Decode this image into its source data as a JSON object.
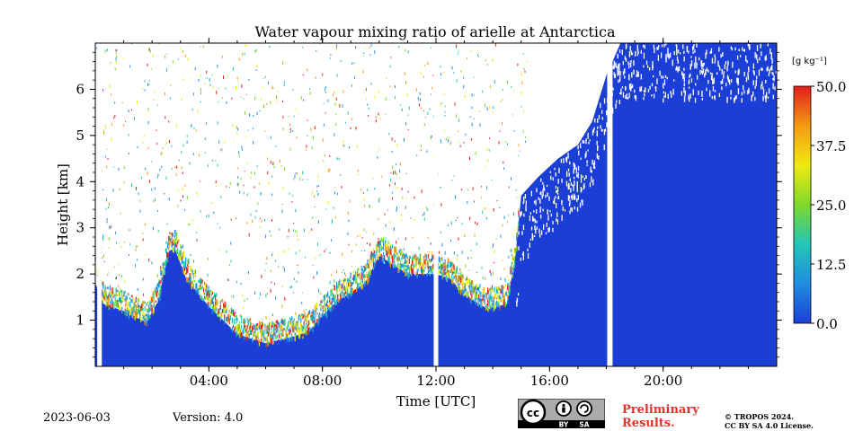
{
  "chart_data": {
    "type": "heatmap",
    "title": "Water vapour mixing ratio of arielle at Antarctica",
    "xlabel": "Time [UTC]",
    "ylabel": "Height [km]",
    "x_range_hours": [
      0,
      24
    ],
    "ylim_km": [
      0,
      7
    ],
    "x_ticks": [
      {
        "value": 4,
        "label": "04:00"
      },
      {
        "value": 8,
        "label": "08:00"
      },
      {
        "value": 12,
        "label": "12:00"
      },
      {
        "value": 16,
        "label": "16:00"
      },
      {
        "value": 20,
        "label": "20:00"
      }
    ],
    "y_ticks": [
      {
        "value": 1,
        "label": "1"
      },
      {
        "value": 2,
        "label": "2"
      },
      {
        "value": 3,
        "label": "3"
      },
      {
        "value": 4,
        "label": "4"
      },
      {
        "value": 5,
        "label": "5"
      },
      {
        "value": 6,
        "label": "6"
      }
    ],
    "colorbar": {
      "unit": "[g kg⁻¹]",
      "range": [
        0,
        50
      ],
      "ticks": [
        "0.0",
        "12.5",
        "25.0",
        "37.5",
        "50.0"
      ],
      "colormap": [
        "#1b3fd6",
        "#1f8de0",
        "#22c6b8",
        "#7fd82c",
        "#f0ea10",
        "#f49a12",
        "#e21c1c"
      ]
    },
    "signal_top_km": [
      [
        0.0,
        1.8
      ],
      [
        0.3,
        1.35
      ],
      [
        1.0,
        1.2
      ],
      [
        1.8,
        0.95
      ],
      [
        2.2,
        1.4
      ],
      [
        2.6,
        2.5
      ],
      [
        2.8,
        2.55
      ],
      [
        3.2,
        1.9
      ],
      [
        4.0,
        1.3
      ],
      [
        5.0,
        0.7
      ],
      [
        6.0,
        0.5
      ],
      [
        7.0,
        0.65
      ],
      [
        7.5,
        0.75
      ],
      [
        8.0,
        1.1
      ],
      [
        8.5,
        1.4
      ],
      [
        9.5,
        1.8
      ],
      [
        10.0,
        2.4
      ],
      [
        11.0,
        2.0
      ],
      [
        12.0,
        2.0
      ],
      [
        12.5,
        1.9
      ],
      [
        13.0,
        1.55
      ],
      [
        13.8,
        1.25
      ],
      [
        14.5,
        1.35
      ],
      [
        14.8,
        2.4
      ],
      [
        15.0,
        3.7
      ],
      [
        15.6,
        4.1
      ],
      [
        16.3,
        4.5
      ],
      [
        17.0,
        4.8
      ],
      [
        17.5,
        5.3
      ],
      [
        18.0,
        6.3
      ],
      [
        18.5,
        7.0
      ],
      [
        24.0,
        7.0
      ]
    ],
    "gaps_hours": [
      [
        0.07,
        0.23
      ],
      [
        11.92,
        12.08
      ],
      [
        18.03,
        18.22
      ]
    ]
  },
  "footer": {
    "date": "2023-06-03",
    "version": "Version: 4.0",
    "preliminary_line1": "Preliminary",
    "preliminary_line2": "Results.",
    "copyright_line1": "© TROPOS 2024.",
    "copyright_line2": "CC BY SA 4.0 License.",
    "license_by": "BY",
    "license_sa": "SA",
    "license_cc": "cc"
  }
}
